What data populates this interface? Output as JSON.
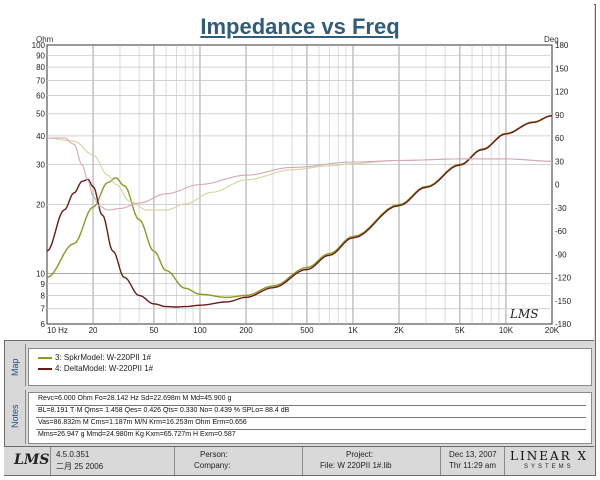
{
  "chart_data": {
    "type": "line",
    "title": "Impedance vs Freq",
    "xscale": "log",
    "yscale_left": "log",
    "xlim": [
      10,
      20000
    ],
    "ylim_left": [
      6,
      100
    ],
    "ylim_right": [
      -180,
      180
    ],
    "left_unit": "Ohm",
    "right_unit": "Deg",
    "x_ticks": [
      {
        "v": 10,
        "label": "10 Hz"
      },
      {
        "v": 20,
        "label": "20"
      },
      {
        "v": 50,
        "label": "50"
      },
      {
        "v": 100,
        "label": "100"
      },
      {
        "v": 200,
        "label": "200"
      },
      {
        "v": 500,
        "label": "500"
      },
      {
        "v": 1000,
        "label": "1K"
      },
      {
        "v": 2000,
        "label": "2K"
      },
      {
        "v": 5000,
        "label": "5K"
      },
      {
        "v": 10000,
        "label": "10K"
      },
      {
        "v": 20000,
        "label": "20K"
      }
    ],
    "y_ticks_left": [
      100,
      90,
      80,
      70,
      60,
      50,
      40,
      30,
      20,
      10,
      9,
      8,
      7,
      6
    ],
    "y_ticks_right": [
      180,
      150,
      120,
      90,
      60,
      30,
      0,
      -30,
      -60,
      -90,
      -120,
      -150,
      -180
    ],
    "grid": true,
    "series": [
      {
        "name": "3: SpkrModel: W-220PII 1#",
        "kind": "impedance",
        "color": "#8b9a1e",
        "x": [
          10,
          15,
          20,
          25,
          28.14,
          32,
          40,
          50,
          60,
          80,
          100,
          150,
          200,
          300,
          500,
          700,
          1000,
          2000,
          3000,
          5000,
          7000,
          10000,
          15000,
          20000
        ],
        "y": [
          9.6,
          13.5,
          19.5,
          25.0,
          26.2,
          24.2,
          17.2,
          12.5,
          10.3,
          8.6,
          8.1,
          7.85,
          8.0,
          8.8,
          10.6,
          12.2,
          14.5,
          20.0,
          24.0,
          30.0,
          35.0,
          41.0,
          46.0,
          49.0
        ]
      },
      {
        "name": "4: DeltaModel: W-220PII 1#",
        "kind": "impedance",
        "color": "#6b1a1a",
        "x": [
          10,
          13,
          15,
          17,
          18.5,
          20,
          23,
          27,
          32,
          40,
          50,
          60,
          70,
          80,
          100,
          150,
          200,
          300,
          500,
          700,
          1000,
          2000,
          3000,
          5000,
          7000,
          10000,
          15000,
          20000
        ],
        "y": [
          12.5,
          19.0,
          22.5,
          25.3,
          25.8,
          24.0,
          18.0,
          12.5,
          9.6,
          8.0,
          7.35,
          7.15,
          7.12,
          7.15,
          7.25,
          7.5,
          7.85,
          8.65,
          10.4,
          12.0,
          14.3,
          19.8,
          23.8,
          29.8,
          34.8,
          40.8,
          45.8,
          49.0
        ]
      },
      {
        "name": "3: SpkrModel: W-220PII 1# (phase)",
        "kind": "phase",
        "color": "#d6d3a0",
        "x": [
          10,
          15,
          20,
          25,
          28.14,
          35,
          45,
          60,
          80,
          120,
          200,
          400,
          700,
          1000,
          2000,
          5000,
          10000,
          20000
        ],
        "y": [
          60,
          56,
          38,
          12,
          0,
          -22,
          -33,
          -33,
          -25,
          -10,
          6,
          19,
          24,
          27,
          31,
          33,
          33,
          30
        ]
      },
      {
        "name": "4: DeltaModel: W-220PII 1# (phase)",
        "kind": "phase",
        "color": "#d4a8b8",
        "x": [
          10,
          13,
          15,
          17,
          18.5,
          20,
          22,
          25,
          30,
          40,
          60,
          100,
          200,
          400,
          1000,
          2000,
          5000,
          10000,
          20000
        ],
        "y": [
          60,
          60,
          52,
          25,
          5,
          -15,
          -28,
          -33,
          -31,
          -24,
          -12,
          0,
          12,
          22,
          29,
          31,
          33,
          33,
          30
        ]
      }
    ]
  },
  "side_labels": {
    "map": "Map",
    "notes": "Notes"
  },
  "legend": [
    {
      "label": "3: SpkrModel: W-220PII  1#",
      "color": "#8b9a1e"
    },
    {
      "label": "4: DeltaModel: W-220PII  1#",
      "color": "#6b1a1a"
    }
  ],
  "notes": [
    "Revc=6.000 Ohm  Fo=28.142 Hz  Sd=22.698m M    Md=45.900 g",
    "BL=8.191 T·M  Qms= 1.458  Qes= 0.426  Qts= 0.330  No= 0.439 %  SPLo= 88.4 dB",
    "Vas=86.832m M      Cms=1.187m M/N  Krm=16.253m Ohm  Erm=0.656",
    "Mms=26.947 g  Mmd=24.980m Kg  Kxm=65.727m H  Exm=0.587"
  ],
  "lms_mark": "LMS",
  "footer": {
    "logo": "LMS",
    "version": "4.5.0.351",
    "date_cn": "二月 25 2006",
    "person": "Person:",
    "company": "Company:",
    "project": "Project:",
    "file": "File: W 220PII  1#.lib",
    "date": "Dec 13, 2007",
    "time": "Thr 11:29 am",
    "brand": "LINEAR X",
    "brand_sub": "SYSTEMS"
  }
}
